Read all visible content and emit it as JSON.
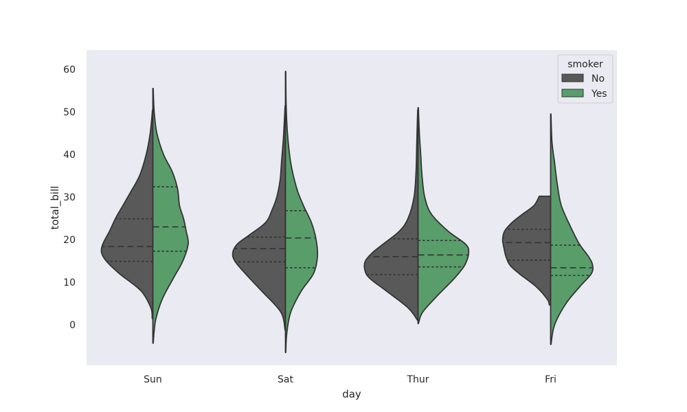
{
  "chart_data": {
    "type": "violin",
    "split": true,
    "inner": "quartile",
    "xlabel": "day",
    "ylabel": "total_bill",
    "categories": [
      "Sun",
      "Sat",
      "Thur",
      "Fri"
    ],
    "ylim": [
      -9.5,
      64.5
    ],
    "yticks": [
      0,
      10,
      20,
      30,
      40,
      50,
      60
    ],
    "grid": false,
    "background": "#eaeaf2",
    "legend": {
      "title": "smoker",
      "position": "top-right",
      "entries": [
        {
          "label": "No",
          "color": "#595959"
        },
        {
          "label": "Yes",
          "color": "#599d6b"
        }
      ]
    },
    "series": [
      {
        "name": "No",
        "color": "#595959",
        "side": "left",
        "violins": [
          {
            "category": "Sun",
            "ymin": 1.5,
            "ymax": 50.5,
            "quartiles": [
              14.9,
              18.4,
              24.9
            ],
            "profile": [
              [
                1.5,
                0.01
              ],
              [
                4,
                0.03
              ],
              [
                8,
                0.18
              ],
              [
                12,
                0.5
              ],
              [
                15,
                0.7
              ],
              [
                17,
                0.77
              ],
              [
                19,
                0.75
              ],
              [
                22,
                0.65
              ],
              [
                25,
                0.56
              ],
              [
                28,
                0.45
              ],
              [
                31,
                0.34
              ],
              [
                35,
                0.2
              ],
              [
                40,
                0.1
              ],
              [
                45,
                0.04
              ],
              [
                50.5,
                0.005
              ]
            ]
          },
          {
            "category": "Sat",
            "ymin": -1.3,
            "ymax": 51.5,
            "quartiles": [
              14.8,
              17.9,
              20.6
            ],
            "profile": [
              [
                -1.3,
                0.005
              ],
              [
                3,
                0.07
              ],
              [
                8,
                0.36
              ],
              [
                12,
                0.6
              ],
              [
                15,
                0.76
              ],
              [
                17,
                0.79
              ],
              [
                19,
                0.72
              ],
              [
                21,
                0.55
              ],
              [
                24,
                0.3
              ],
              [
                27,
                0.2
              ],
              [
                30,
                0.13
              ],
              [
                34,
                0.08
              ],
              [
                38,
                0.06
              ],
              [
                44,
                0.03
              ],
              [
                51.5,
                0.005
              ]
            ]
          },
          {
            "category": "Thur",
            "ymin": 1.0,
            "ymax": 50.5,
            "quartiles": [
              11.8,
              16.0,
              20.2
            ],
            "profile": [
              [
                1,
                0.005
              ],
              [
                4,
                0.15
              ],
              [
                8,
                0.48
              ],
              [
                11,
                0.73
              ],
              [
                13,
                0.8
              ],
              [
                15,
                0.79
              ],
              [
                17,
                0.68
              ],
              [
                19,
                0.52
              ],
              [
                22,
                0.28
              ],
              [
                25,
                0.15
              ],
              [
                30,
                0.06
              ],
              [
                36,
                0.03
              ],
              [
                42,
                0.02
              ],
              [
                48,
                0.01
              ],
              [
                50.5,
                0.005
              ]
            ]
          },
          {
            "category": "Fri",
            "ymin": 4.7,
            "ymax": 30.2,
            "quartiles": [
              15.2,
              19.3,
              22.4
            ],
            "profile": [
              [
                4.7,
                0.02
              ],
              [
                6,
                0.05
              ],
              [
                9,
                0.22
              ],
              [
                12,
                0.47
              ],
              [
                14,
                0.61
              ],
              [
                16,
                0.67
              ],
              [
                18,
                0.7
              ],
              [
                20,
                0.72
              ],
              [
                22,
                0.69
              ],
              [
                24,
                0.58
              ],
              [
                26,
                0.42
              ],
              [
                28,
                0.25
              ],
              [
                30.2,
                0.17
              ]
            ]
          }
        ]
      },
      {
        "name": "Yes",
        "color": "#599d6b",
        "side": "right",
        "violins": [
          {
            "category": "Sun",
            "ymin": -4.3,
            "ymax": 55.5,
            "quartiles": [
              17.3,
              23.0,
              32.4
            ],
            "profile": [
              [
                -4.3,
                0.005
              ],
              [
                1,
                0.04
              ],
              [
                6,
                0.14
              ],
              [
                11,
                0.31
              ],
              [
                15,
                0.45
              ],
              [
                19,
                0.53
              ],
              [
                22,
                0.5
              ],
              [
                25,
                0.46
              ],
              [
                28,
                0.4
              ],
              [
                32,
                0.37
              ],
              [
                36,
                0.29
              ],
              [
                40,
                0.16
              ],
              [
                45,
                0.06
              ],
              [
                50,
                0.02
              ],
              [
                55.5,
                0.005
              ]
            ]
          },
          {
            "category": "Sat",
            "ymin": -6.5,
            "ymax": 59.5,
            "quartiles": [
              13.4,
              20.4,
              26.8
            ],
            "profile": [
              [
                -6.5,
                0.005
              ],
              [
                -2,
                0.02
              ],
              [
                3,
                0.08
              ],
              [
                8,
                0.24
              ],
              [
                12,
                0.42
              ],
              [
                16,
                0.48
              ],
              [
                20,
                0.46
              ],
              [
                24,
                0.39
              ],
              [
                28,
                0.27
              ],
              [
                32,
                0.17
              ],
              [
                38,
                0.08
              ],
              [
                45,
                0.03
              ],
              [
                52,
                0.01
              ],
              [
                59.5,
                0.005
              ]
            ]
          },
          {
            "category": "Thur",
            "ymin": 0.3,
            "ymax": 51.0,
            "quartiles": [
              13.6,
              16.4,
              19.8
            ],
            "profile": [
              [
                0.3,
                0.005
              ],
              [
                3,
                0.07
              ],
              [
                7,
                0.3
              ],
              [
                11,
                0.55
              ],
              [
                14,
                0.7
              ],
              [
                17,
                0.76
              ],
              [
                19,
                0.71
              ],
              [
                22,
                0.45
              ],
              [
                26,
                0.2
              ],
              [
                30,
                0.1
              ],
              [
                35,
                0.06
              ],
              [
                40,
                0.04
              ],
              [
                45,
                0.02
              ],
              [
                51,
                0.005
              ]
            ]
          },
          {
            "category": "Fri",
            "ymin": -4.6,
            "ymax": 49.5,
            "quartiles": [
              11.6,
              13.4,
              18.7
            ],
            "profile": [
              [
                -4.6,
                0.005
              ],
              [
                0,
                0.06
              ],
              [
                5,
                0.23
              ],
              [
                9,
                0.44
              ],
              [
                12,
                0.61
              ],
              [
                14,
                0.63
              ],
              [
                16,
                0.57
              ],
              [
                19,
                0.43
              ],
              [
                23,
                0.3
              ],
              [
                28,
                0.16
              ],
              [
                33,
                0.1
              ],
              [
                38,
                0.06
              ],
              [
                43,
                0.02
              ],
              [
                49.5,
                0.005
              ]
            ]
          }
        ]
      }
    ]
  }
}
